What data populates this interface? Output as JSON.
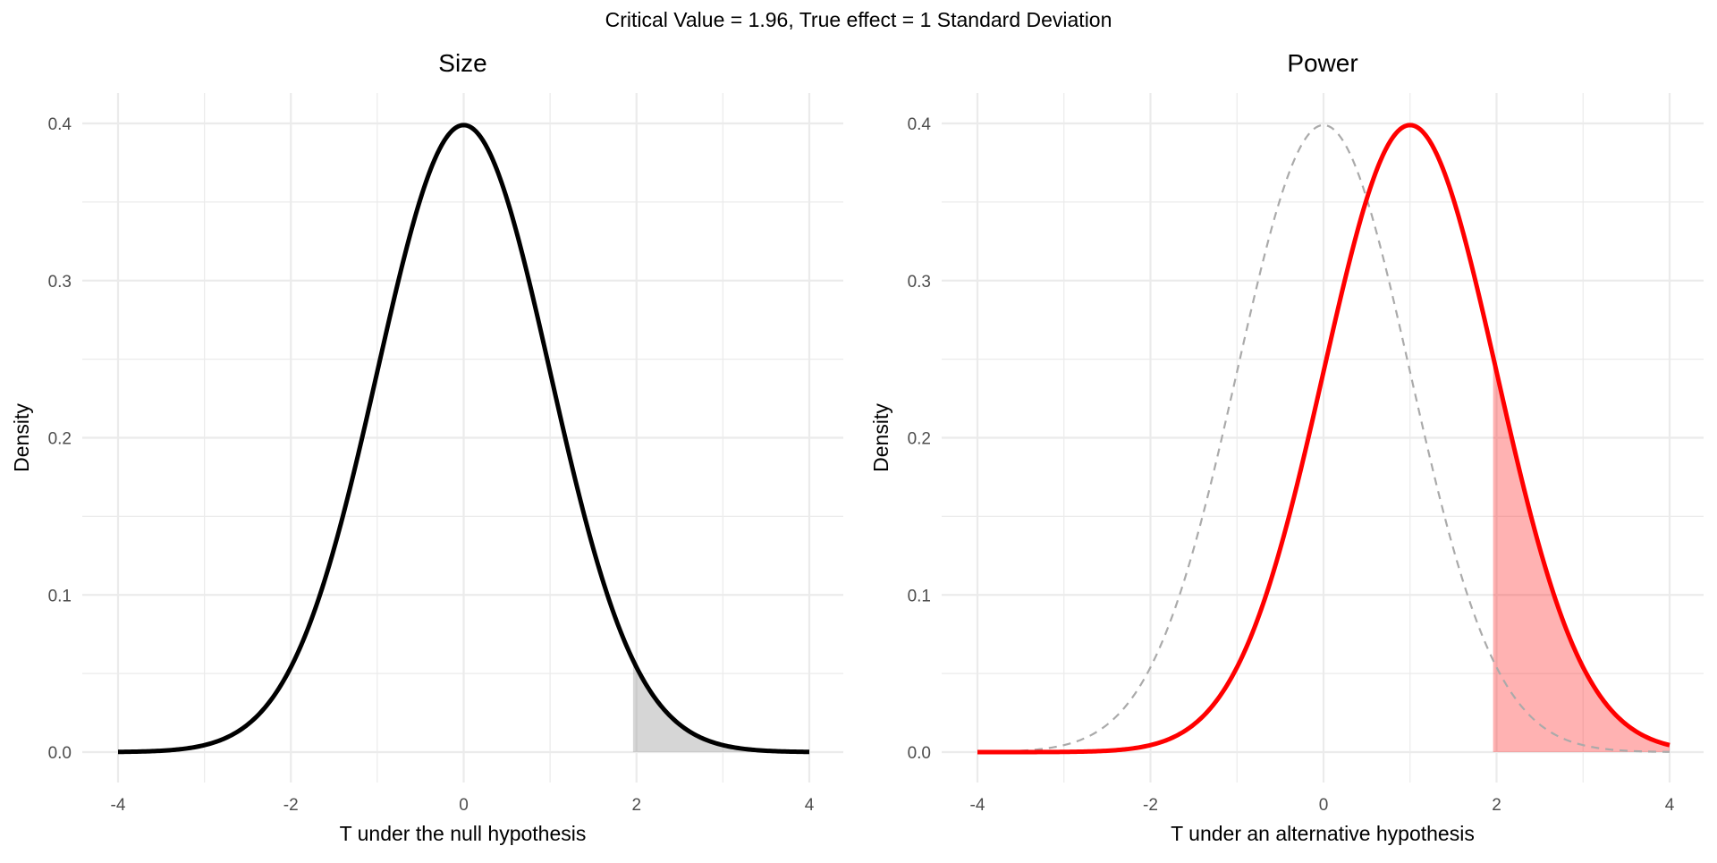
{
  "title": "Critical Value = 1.96, True effect = 1 Standard Deviation",
  "chart_data": [
    {
      "type": "line",
      "title": "Size",
      "xlabel": "T under the null hypothesis",
      "ylabel": "Density",
      "xlim": [
        -4,
        4
      ],
      "ylim": [
        0,
        0.4
      ],
      "x_ticks": [
        "-4",
        "-2",
        "0",
        "2",
        "4"
      ],
      "y_ticks": [
        "0.0",
        "0.1",
        "0.2",
        "0.3",
        "0.4"
      ],
      "grid": true,
      "series": [
        {
          "kind": "normal-density",
          "mean": 0,
          "sd": 1,
          "color": "#000000",
          "style": "solid"
        }
      ],
      "shaded_region": {
        "from": 1.96,
        "to": 4,
        "color": "#999999",
        "opacity": 0.4
      }
    },
    {
      "type": "line",
      "title": "Power",
      "xlabel": "T under an alternative hypothesis",
      "ylabel": "Density",
      "xlim": [
        -4,
        4
      ],
      "ylim": [
        0,
        0.4
      ],
      "x_ticks": [
        "-4",
        "-2",
        "0",
        "2",
        "4"
      ],
      "y_ticks": [
        "0.0",
        "0.1",
        "0.2",
        "0.3",
        "0.4"
      ],
      "grid": true,
      "series": [
        {
          "kind": "normal-density",
          "mean": 0,
          "sd": 1,
          "color": "#aaaaaa",
          "style": "dashed"
        },
        {
          "kind": "normal-density",
          "mean": 1,
          "sd": 1,
          "color": "#ff0000",
          "style": "solid"
        }
      ],
      "shaded_region": {
        "from": 1.96,
        "to": 4,
        "color": "#ff0000",
        "opacity": 0.3
      }
    }
  ]
}
